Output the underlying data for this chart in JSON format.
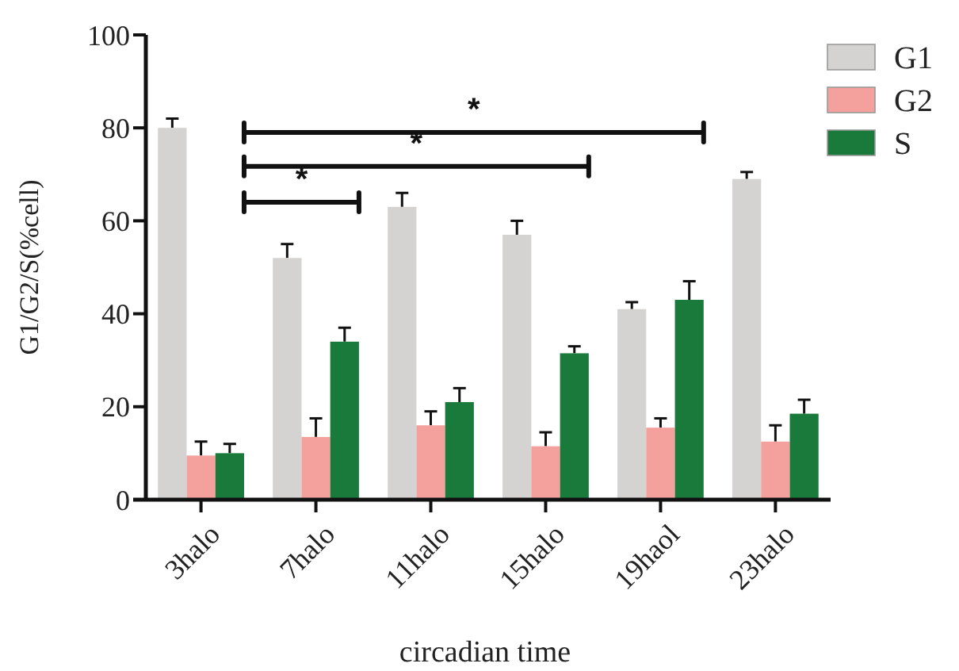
{
  "chart_data": {
    "type": "bar",
    "xlabel": "circadian time",
    "ylabel": "G1/G2/S(%cell)",
    "categories": [
      "3halo",
      "7halo",
      "11halo",
      "15halo",
      "19haol",
      "23halo"
    ],
    "series": [
      {
        "name": "G1",
        "color": "#d4d3d1",
        "values": [
          80,
          52,
          63,
          57,
          41,
          69
        ],
        "errors": [
          [
            80,
            82
          ],
          [
            52,
            55
          ],
          [
            63,
            66
          ],
          [
            57,
            60
          ],
          [
            41,
            42.5
          ],
          [
            69,
            70.5
          ]
        ]
      },
      {
        "name": "G2",
        "color": "#f4a19e",
        "values": [
          9.5,
          13.5,
          16,
          11.5,
          15.5,
          12.5
        ],
        "errors": [
          [
            9.5,
            12.5
          ],
          [
            13.5,
            17.5
          ],
          [
            16,
            19
          ],
          [
            11.5,
            14.5
          ],
          [
            15.5,
            17.5
          ],
          [
            12.5,
            16
          ]
        ]
      },
      {
        "name": "S",
        "color": "#1a7a3c",
        "values": [
          10,
          34,
          21,
          31.5,
          43,
          18.5
        ],
        "errors": [
          [
            10,
            12
          ],
          [
            34,
            37
          ],
          [
            21,
            24
          ],
          [
            31.5,
            33
          ],
          [
            43,
            47
          ],
          [
            18.5,
            21.5
          ]
        ]
      }
    ],
    "ylim": [
      0,
      100
    ],
    "yticks": [
      0,
      20,
      40,
      60,
      80,
      100
    ],
    "grid": false,
    "legend": "top right",
    "annotations": [
      "*",
      "*",
      "*"
    ]
  }
}
